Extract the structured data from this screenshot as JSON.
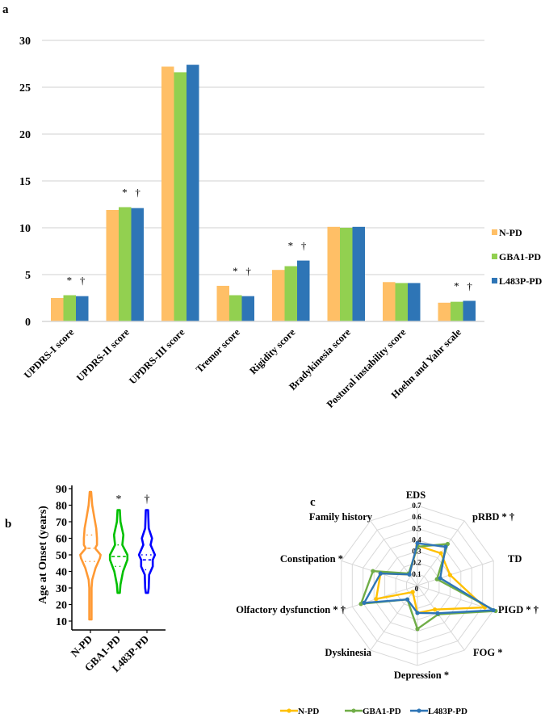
{
  "colors": {
    "npd": "#ffbf66",
    "gba": "#92d050",
    "l483p": "#2e75b6",
    "grid": "#d9d9d9",
    "violin_npd": "#ff9933",
    "violin_gba": "#00c000",
    "violin_l483p": "#0000ff",
    "radar_npd": "#ffc000",
    "radar_gba": "#70ad47",
    "radar_l483p": "#2e75b6"
  },
  "panel_labels": {
    "a": "a",
    "b": "b",
    "c": "c"
  },
  "chart_data": [
    {
      "id": "a",
      "type": "bar",
      "categories": [
        "UPDRS-I score",
        "UPDRS-II score",
        "UPDRS-III score",
        "Tremor score",
        "Rigidity score",
        "Bradykinesia score",
        "Postural instability score",
        "Hoehn and Yahr scale"
      ],
      "series": [
        {
          "name": "N-PD",
          "values": [
            2.5,
            11.9,
            27.2,
            3.8,
            5.5,
            10.1,
            4.2,
            2.0
          ]
        },
        {
          "name": "GBA1-PD",
          "values": [
            2.8,
            12.2,
            26.6,
            2.8,
            5.9,
            10.0,
            4.1,
            2.1
          ]
        },
        {
          "name": "L483P-PD",
          "values": [
            2.7,
            12.1,
            27.4,
            2.7,
            6.5,
            10.1,
            4.1,
            2.2
          ]
        }
      ],
      "annotations": [
        "* †",
        "* †",
        "",
        "* †",
        "* †",
        "",
        "",
        "* †"
      ],
      "yticks": [
        "0",
        "5",
        "10",
        "15",
        "20",
        "25",
        "30"
      ],
      "ylim": [
        0,
        30
      ],
      "grid": true,
      "legend": "right"
    },
    {
      "id": "b",
      "type": "violin",
      "ylabel": "Age at Onset (years)",
      "yticks": [
        "10",
        "20",
        "30",
        "40",
        "50",
        "60",
        "70",
        "80",
        "90"
      ],
      "ylim": [
        10,
        90
      ],
      "groups": [
        {
          "name": "N-PD",
          "annotation": "",
          "median": 54,
          "q1": 46,
          "q3": 62,
          "profile": [
            [
              88,
              0.05
            ],
            [
              80,
              0.12
            ],
            [
              72,
              0.28
            ],
            [
              66,
              0.4
            ],
            [
              60,
              0.45
            ],
            [
              56,
              0.45
            ],
            [
              54,
              0.32
            ],
            [
              50,
              0.7
            ],
            [
              48,
              0.65
            ],
            [
              42,
              0.35
            ],
            [
              35,
              0.12
            ],
            [
              30,
              0.08
            ],
            [
              11,
              0.08
            ]
          ]
        },
        {
          "name": "GBA1-PD",
          "annotation": "*",
          "median": 49,
          "q1": 43,
          "q3": 56,
          "profile": [
            [
              77,
              0.08
            ],
            [
              70,
              0.12
            ],
            [
              62,
              0.32
            ],
            [
              56,
              0.25
            ],
            [
              50,
              0.6
            ],
            [
              47,
              0.6
            ],
            [
              40,
              0.3
            ],
            [
              32,
              0.12
            ],
            [
              27,
              0.08
            ]
          ]
        },
        {
          "name": "L483P-PD",
          "annotation": "†",
          "median": 47,
          "q1": 41,
          "q3": 50,
          "profile": [
            [
              77,
              0.08
            ],
            [
              66,
              0.12
            ],
            [
              60,
              0.35
            ],
            [
              56,
              0.25
            ],
            [
              50,
              0.55
            ],
            [
              47,
              0.4
            ],
            [
              43,
              0.4
            ],
            [
              38,
              0.15
            ],
            [
              30,
              0.12
            ],
            [
              27,
              0.08
            ]
          ]
        }
      ]
    },
    {
      "id": "c",
      "type": "radar",
      "axes": [
        "EDS",
        "pRBD * †",
        "TD",
        "PIGD * †",
        "FOG *",
        "Depression *",
        "Dyskinesia",
        "Olfactory dysfunction  * †",
        "Constipation *",
        "Family history"
      ],
      "rticks": [
        "0",
        "0.1",
        "0.2",
        "0.3",
        "0.4",
        "0.5",
        "0.6",
        "0.7"
      ],
      "rlim": [
        0,
        0.7
      ],
      "series": [
        {
          "name": "N-PD",
          "values": [
            0.35,
            0.35,
            0.3,
            0.62,
            0.26,
            0.24,
            0.07,
            0.38,
            0.34,
            0.12
          ]
        },
        {
          "name": "GBA1-PD",
          "values": [
            0.34,
            0.45,
            0.18,
            0.72,
            0.31,
            0.38,
            0.15,
            0.52,
            0.41,
            0.13
          ]
        },
        {
          "name": "L483P-PD",
          "values": [
            0.37,
            0.42,
            0.21,
            0.7,
            0.3,
            0.24,
            0.15,
            0.49,
            0.34,
            0.12
          ]
        }
      ],
      "legend": "bottom"
    }
  ]
}
